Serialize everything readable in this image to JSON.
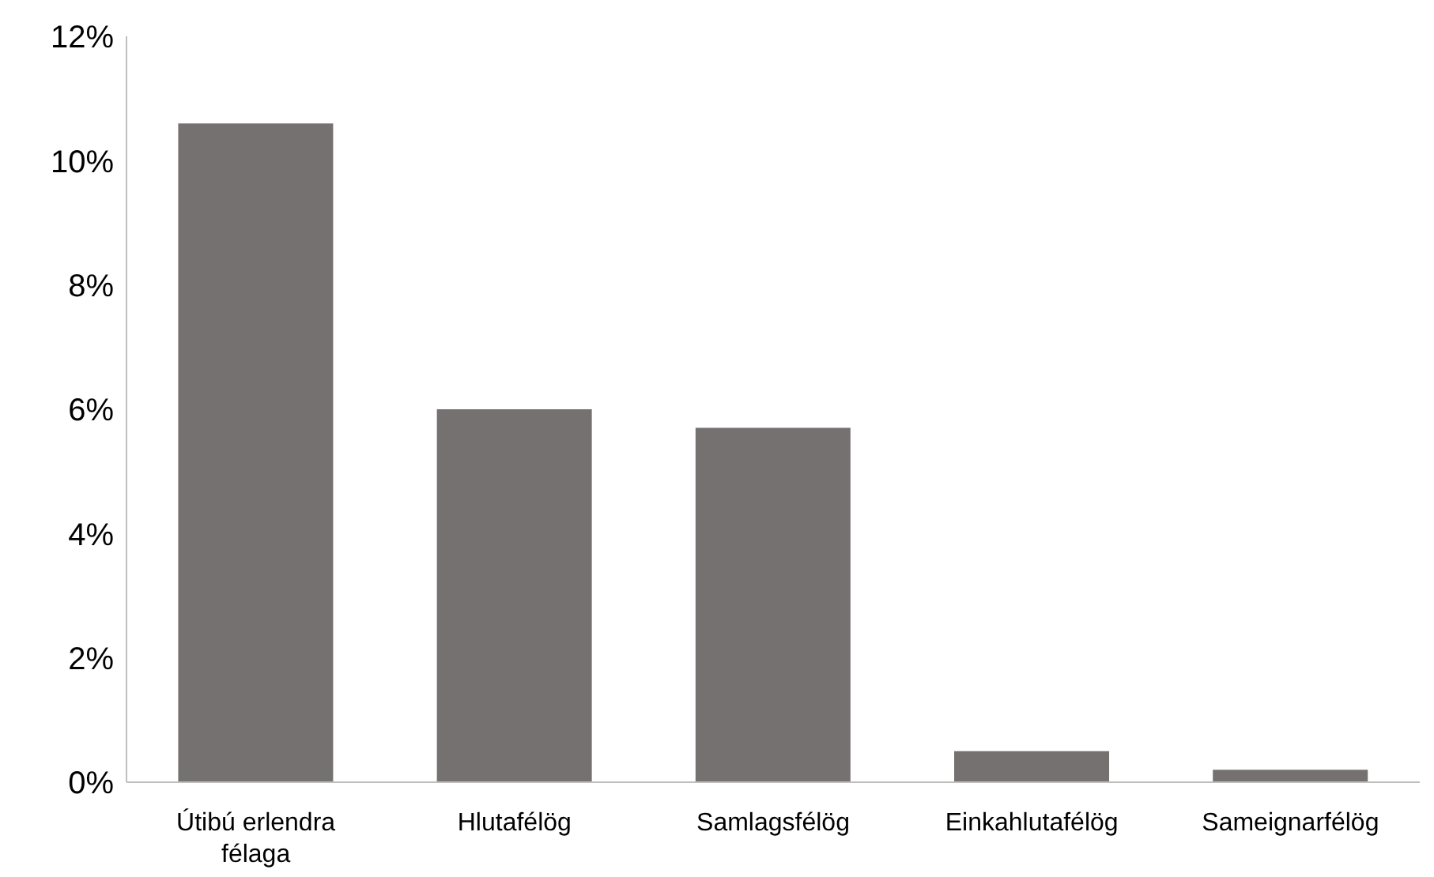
{
  "chart_data": {
    "type": "bar",
    "categories": [
      "Útibú erlendra félaga",
      "Hlutafélög",
      "Samlagsfélög",
      "Einkahlutafélög",
      "Sameignarfélög"
    ],
    "values": [
      10.6,
      6.0,
      5.7,
      0.5,
      0.2
    ],
    "color": "#767171",
    "ylim": [
      0,
      12
    ],
    "yticks": [
      {
        "value": 0,
        "label": "0%"
      },
      {
        "value": 2,
        "label": "2%"
      },
      {
        "value": 4,
        "label": "4%"
      },
      {
        "value": 6,
        "label": "6%"
      },
      {
        "value": 8,
        "label": "8%"
      },
      {
        "value": 10,
        "label": "10%"
      },
      {
        "value": 12,
        "label": "12%"
      }
    ],
    "grid": false,
    "legend": false
  }
}
